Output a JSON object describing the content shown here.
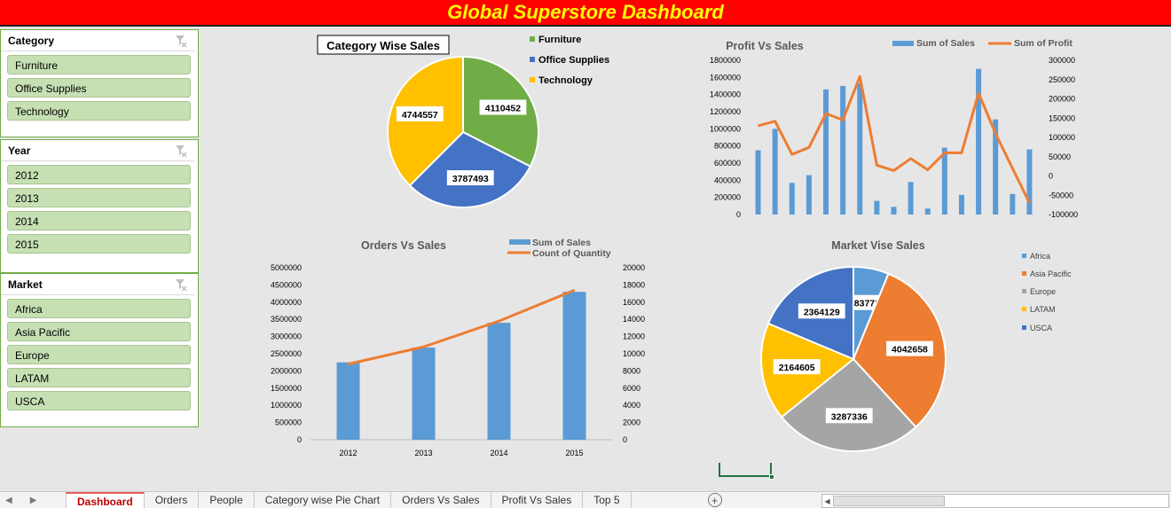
{
  "title": "Global Superstore Dashboard",
  "colors": {
    "banner": "#ff0000",
    "title_text": "#ffff00",
    "slicer_item": "#c6e0b4"
  },
  "slicers": [
    {
      "title": "Category",
      "items": [
        "Furniture",
        "Office Supplies",
        "Technology"
      ]
    },
    {
      "title": "Year",
      "items": [
        "2012",
        "2013",
        "2014",
        "2015"
      ]
    },
    {
      "title": "Market",
      "items": [
        "Africa",
        "Asia Pacific",
        "Europe",
        "LATAM",
        "USCA"
      ]
    }
  ],
  "chart_data": [
    {
      "type": "pie",
      "title": "Category Wise Sales",
      "labels": [
        "Furniture",
        "Office Supplies",
        "Technology"
      ],
      "values": [
        4110452,
        3787493,
        4744557
      ],
      "colors": [
        "#70ad47",
        "#4472c4",
        "#ffc000"
      ],
      "legend": "right"
    },
    {
      "type": "bar+line",
      "title": "Profit Vs Sales",
      "series": [
        {
          "name": "Sum of Sales",
          "type": "bar",
          "axis": "left",
          "color": "#5b9bd5",
          "values": [
            750000,
            1000000,
            370000,
            460000,
            1460000,
            1500000,
            1530000,
            160000,
            90000,
            380000,
            70000,
            780000,
            230000,
            1700000,
            1110000,
            240000,
            760000
          ]
        },
        {
          "name": "Sum of Profit",
          "type": "line",
          "axis": "right",
          "color": "#ed7d31",
          "values": [
            130000,
            142000,
            56000,
            74000,
            162000,
            145000,
            258000,
            28000,
            14000,
            45000,
            16000,
            60000,
            60000,
            215000,
            110000,
            20000,
            -70000
          ]
        }
      ],
      "left_axis": {
        "ticks": [
          "1800000",
          "1600000",
          "1400000",
          "1200000",
          "1000000",
          "800000",
          "600000",
          "400000",
          "200000",
          "0"
        ],
        "ylim": [
          0,
          1800000
        ]
      },
      "right_axis": {
        "ticks": [
          "300000",
          "250000",
          "200000",
          "150000",
          "100000",
          "50000",
          "0",
          "-50000",
          "-100000"
        ],
        "ylim": [
          -100000,
          300000
        ]
      },
      "legend": "top"
    },
    {
      "type": "bar+line",
      "title": "Orders Vs Sales",
      "categories": [
        "2012",
        "2013",
        "2014",
        "2015"
      ],
      "series": [
        {
          "name": "Sum of Sales",
          "type": "bar",
          "axis": "left",
          "color": "#5b9bd5",
          "values": [
            2250000,
            2680000,
            3400000,
            4300000
          ]
        },
        {
          "name": "Count of Quantity",
          "type": "line",
          "axis": "right",
          "color": "#ed7d31",
          "values": [
            8800,
            10800,
            13800,
            17400
          ]
        }
      ],
      "left_axis": {
        "ticks": [
          "5000000",
          "4500000",
          "4000000",
          "3500000",
          "3000000",
          "2500000",
          "2000000",
          "1500000",
          "1000000",
          "500000",
          "0"
        ],
        "ylim": [
          0,
          5000000
        ]
      },
      "right_axis": {
        "ticks": [
          "20000",
          "18000",
          "16000",
          "14000",
          "12000",
          "10000",
          "8000",
          "6000",
          "4000",
          "2000",
          "0"
        ],
        "ylim": [
          0,
          20000
        ]
      },
      "legend": "top-right"
    },
    {
      "type": "pie",
      "title": "Market Vise Sales",
      "labels": [
        "Africa",
        "Asia Pacific",
        "Europe",
        "LATAM",
        "USCA"
      ],
      "values": [
        783773,
        4042658,
        3287336,
        2164605,
        2364129
      ],
      "colors": [
        "#5b9bd5",
        "#ed7d31",
        "#a5a5a5",
        "#ffc000",
        "#4472c4"
      ],
      "legend": "right"
    }
  ],
  "tabs": [
    "Dashboard",
    "Orders",
    "People",
    "Category wise Pie Chart",
    "Orders Vs Sales",
    "Profit Vs Sales",
    "Top 5"
  ],
  "active_tab": "Dashboard",
  "icons": [
    "filter-clear-icon",
    "add-sheet-icon",
    "scroll-left-icon",
    "scroll-right-icon"
  ]
}
